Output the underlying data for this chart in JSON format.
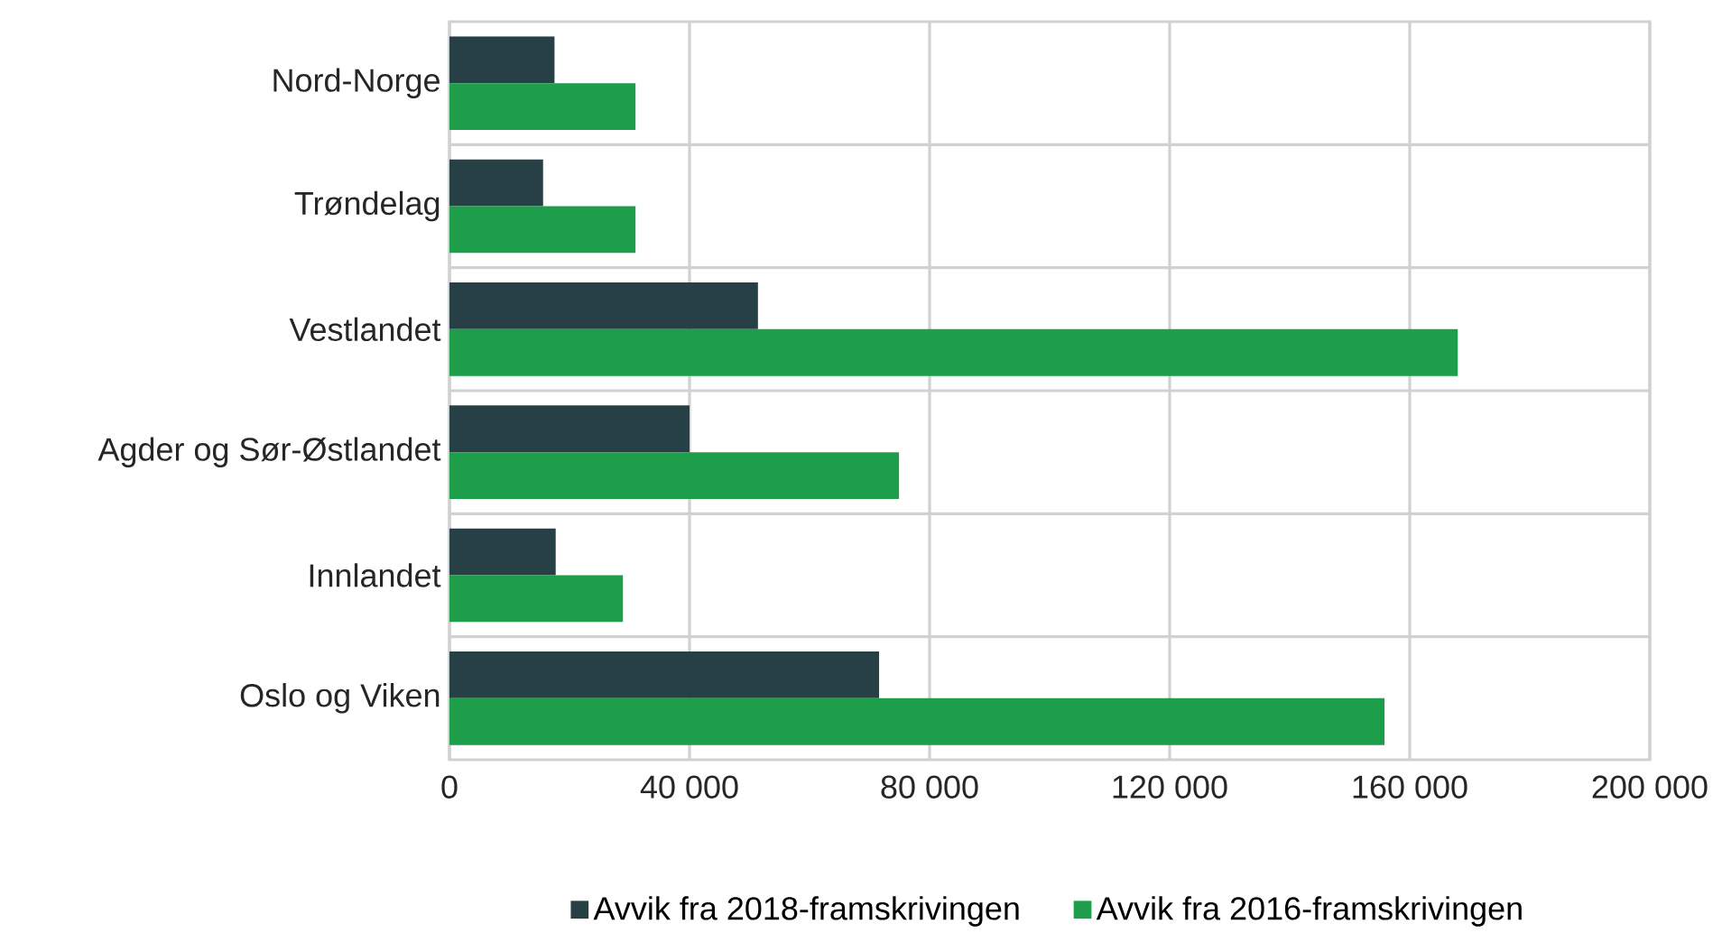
{
  "chart_data": {
    "type": "bar",
    "orientation": "horizontal",
    "categories": [
      "Nord-Norge",
      "Trøndelag",
      "Vestlandet",
      "Agder og Sør-Østlandet",
      "Innlandet",
      "Oslo og Viken"
    ],
    "series": [
      {
        "name": "Avvik fra 2018-framskrivingen",
        "color": "#264046",
        "values": [
          17500,
          15600,
          51400,
          40000,
          17700,
          71600
        ]
      },
      {
        "name": "Avvik fra 2016-framskrivingen",
        "color": "#1e9e4a",
        "values": [
          31000,
          31000,
          168000,
          74900,
          28900,
          155800
        ]
      }
    ],
    "xlim": [
      0,
      200000
    ],
    "xticks": [
      {
        "value": 0,
        "label": "0"
      },
      {
        "value": 40000,
        "label": "40 000"
      },
      {
        "value": 80000,
        "label": "80 000"
      },
      {
        "value": 120000,
        "label": "120 000"
      },
      {
        "value": 160000,
        "label": "160 000"
      },
      {
        "value": 200000,
        "label": "200 000"
      }
    ],
    "grid": true,
    "legend": "bottom"
  }
}
